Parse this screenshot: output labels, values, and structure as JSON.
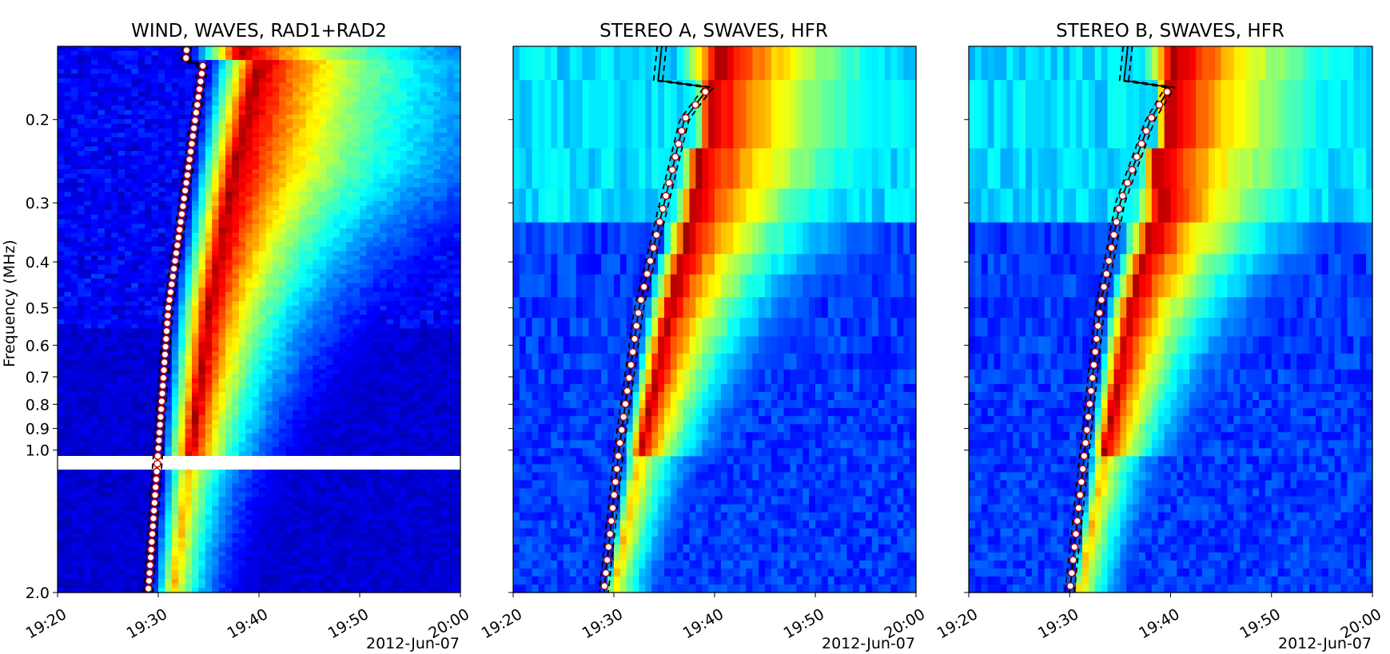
{
  "figure": {
    "ylabel": "Frequency (MHz)",
    "date_label": "2012-Jun-07"
  },
  "chart_data": [
    {
      "type": "heatmap",
      "title": "WIND, WAVES, RAD1+RAD2",
      "instrument": "wind",
      "xlabel": "2012-Jun-07",
      "ylabel": "Frequency (MHz)",
      "x_range": [
        "19:20",
        "20:00"
      ],
      "xticks": [
        "19:20",
        "19:30",
        "19:40",
        "19:50",
        "20:00"
      ],
      "yscale": "log",
      "ylim": [
        2.0,
        0.14
      ],
      "yticks": [
        0.2,
        0.3,
        0.4,
        0.5,
        0.6,
        0.7,
        0.8,
        0.9,
        1.0,
        2.0
      ],
      "ytick_labels": [
        "0.2",
        "0.3",
        "0.4",
        "0.5",
        "0.6",
        "0.7",
        "0.8",
        "0.9",
        "1.0",
        "2.0"
      ],
      "data_gap_mhz": 1.07,
      "burst_onset": [
        {
          "freq_mhz": 2.0,
          "time": "19:29:00"
        },
        {
          "freq_mhz": 1.0,
          "time": "19:30:00"
        },
        {
          "freq_mhz": 0.5,
          "time": "19:31:00"
        },
        {
          "freq_mhz": 0.3,
          "time": "19:32:30"
        },
        {
          "freq_mhz": 0.2,
          "time": "19:33:40"
        },
        {
          "freq_mhz": 0.15,
          "time": "19:34:30"
        }
      ],
      "peak_emission": [
        {
          "freq_mhz": 2.0,
          "time": "19:31:30"
        },
        {
          "freq_mhz": 0.5,
          "time": "19:35:00"
        },
        {
          "freq_mhz": 0.25,
          "time": "19:37:30"
        },
        {
          "freq_mhz": 0.15,
          "time": "19:40:00"
        }
      ],
      "colormap": "jet"
    },
    {
      "type": "heatmap",
      "title": "STEREO A, SWAVES, HFR",
      "instrument": "stereo_a",
      "xlabel": "2012-Jun-07",
      "x_range": [
        "19:20",
        "20:00"
      ],
      "xticks": [
        "19:20",
        "19:30",
        "19:40",
        "19:50",
        "20:00"
      ],
      "yscale": "log",
      "ylim": [
        2.0,
        0.14
      ],
      "yticks": [
        0.2,
        0.3,
        0.4,
        0.5,
        0.6,
        0.7,
        0.8,
        0.9,
        1.0,
        2.0
      ],
      "burst_onset": [
        {
          "freq_mhz": 2.0,
          "time": "19:29:00"
        },
        {
          "freq_mhz": 1.0,
          "time": "19:30:30"
        },
        {
          "freq_mhz": 0.5,
          "time": "19:32:30"
        },
        {
          "freq_mhz": 0.3,
          "time": "19:35:00"
        },
        {
          "freq_mhz": 0.2,
          "time": "19:37:00"
        },
        {
          "freq_mhz": 0.17,
          "time": "19:39:30"
        }
      ],
      "peak_emission": [
        {
          "freq_mhz": 1.5,
          "time": "19:31:00"
        },
        {
          "freq_mhz": 0.5,
          "time": "19:35:30"
        },
        {
          "freq_mhz": 0.3,
          "time": "19:38:00"
        }
      ],
      "colormap": "jet"
    },
    {
      "type": "heatmap",
      "title": "STEREO B, SWAVES, HFR",
      "instrument": "stereo_b",
      "xlabel": "2012-Jun-07",
      "x_range": [
        "19:20",
        "20:00"
      ],
      "xticks": [
        "19:20",
        "19:30",
        "19:40",
        "19:50",
        "20:00"
      ],
      "yscale": "log",
      "ylim": [
        2.0,
        0.14
      ],
      "yticks": [
        0.2,
        0.3,
        0.4,
        0.5,
        0.6,
        0.7,
        0.8,
        0.9,
        1.0,
        2.0
      ],
      "burst_onset": [
        {
          "freq_mhz": 2.0,
          "time": "19:30:00"
        },
        {
          "freq_mhz": 1.0,
          "time": "19:31:30"
        },
        {
          "freq_mhz": 0.5,
          "time": "19:33:00"
        },
        {
          "freq_mhz": 0.3,
          "time": "19:35:00"
        },
        {
          "freq_mhz": 0.2,
          "time": "19:38:00"
        },
        {
          "freq_mhz": 0.17,
          "time": "19:40:00"
        }
      ],
      "peak_emission": [
        {
          "freq_mhz": 1.5,
          "time": "19:32:00"
        },
        {
          "freq_mhz": 0.5,
          "time": "19:36:00"
        },
        {
          "freq_mhz": 0.3,
          "time": "19:39:00"
        }
      ],
      "colormap": "jet"
    }
  ]
}
